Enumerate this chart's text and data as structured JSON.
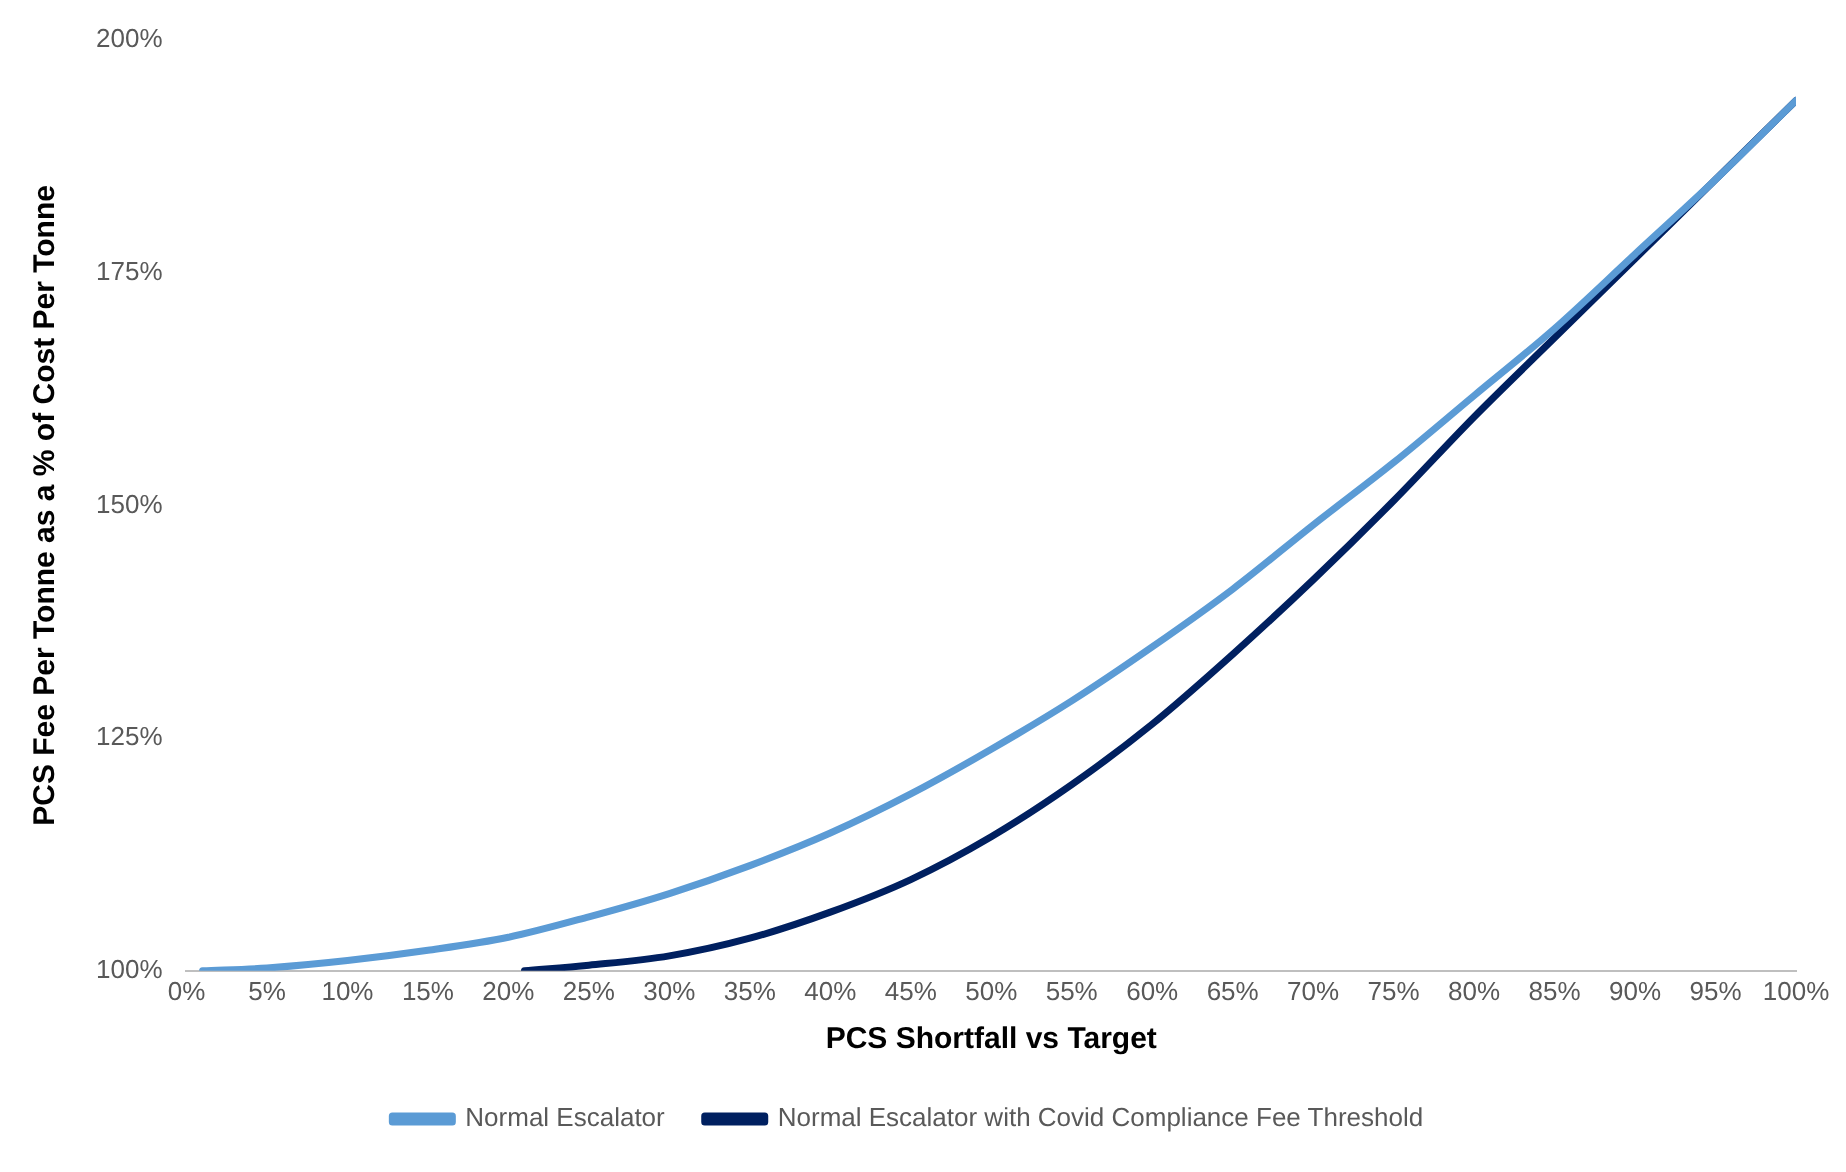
{
  "chart_data": {
    "type": "line",
    "xlabel": "PCS Shortfall vs Target",
    "ylabel": "PCS Fee Per Tonne as a % of Cost Per Tonne",
    "series": [
      {
        "name": "Normal Escalator",
        "color": "#5b9bd5",
        "x": [
          1,
          5,
          10,
          15,
          20,
          25,
          30,
          35,
          40,
          45,
          50,
          55,
          60,
          65,
          70,
          75,
          80,
          85,
          90,
          95,
          100
        ],
        "values": [
          100,
          100.3,
          101.1,
          102.2,
          103.6,
          105.8,
          108.3,
          111.3,
          114.8,
          119,
          123.8,
          129,
          134.8,
          141,
          147.9,
          154.6,
          161.8,
          169,
          177,
          185,
          193.5
        ]
      },
      {
        "name": "Normal Escalator with Covid Compliance Fee Threshold",
        "color": "#002060",
        "x": [
          21,
          25,
          30,
          35,
          40,
          45,
          50,
          55,
          60,
          65,
          70,
          75,
          80,
          85,
          90,
          95,
          100
        ],
        "values": [
          100,
          100.6,
          101.6,
          103.5,
          106.3,
          109.8,
          114.4,
          120,
          126.5,
          134,
          142,
          150.5,
          159.5,
          168,
          176.5,
          185,
          193.5
        ]
      }
    ],
    "xlim": [
      0,
      100
    ],
    "xticks": [
      {
        "value": 0,
        "label": "0%"
      },
      {
        "value": 5,
        "label": "5%"
      },
      {
        "value": 10,
        "label": "10%"
      },
      {
        "value": 15,
        "label": "15%"
      },
      {
        "value": 20,
        "label": "20%"
      },
      {
        "value": 25,
        "label": "25%"
      },
      {
        "value": 30,
        "label": "30%"
      },
      {
        "value": 35,
        "label": "35%"
      },
      {
        "value": 40,
        "label": "40%"
      },
      {
        "value": 45,
        "label": "45%"
      },
      {
        "value": 50,
        "label": "50%"
      },
      {
        "value": 55,
        "label": "55%"
      },
      {
        "value": 60,
        "label": "60%"
      },
      {
        "value": 65,
        "label": "65%"
      },
      {
        "value": 70,
        "label": "70%"
      },
      {
        "value": 75,
        "label": "75%"
      },
      {
        "value": 80,
        "label": "80%"
      },
      {
        "value": 85,
        "label": "85%"
      },
      {
        "value": 90,
        "label": "90%"
      },
      {
        "value": 95,
        "label": "95%"
      },
      {
        "value": 100,
        "label": "100%"
      }
    ],
    "ylim": [
      100,
      200
    ],
    "yticks": [
      {
        "value": 100,
        "label": "100%"
      },
      {
        "value": 125,
        "label": "125%"
      },
      {
        "value": 150,
        "label": "150%"
      },
      {
        "value": 175,
        "label": "175%"
      },
      {
        "value": 200,
        "label": "200%"
      }
    ],
    "grid": false,
    "legend": "bottom",
    "marker": "none",
    "line_style": "solid"
  }
}
